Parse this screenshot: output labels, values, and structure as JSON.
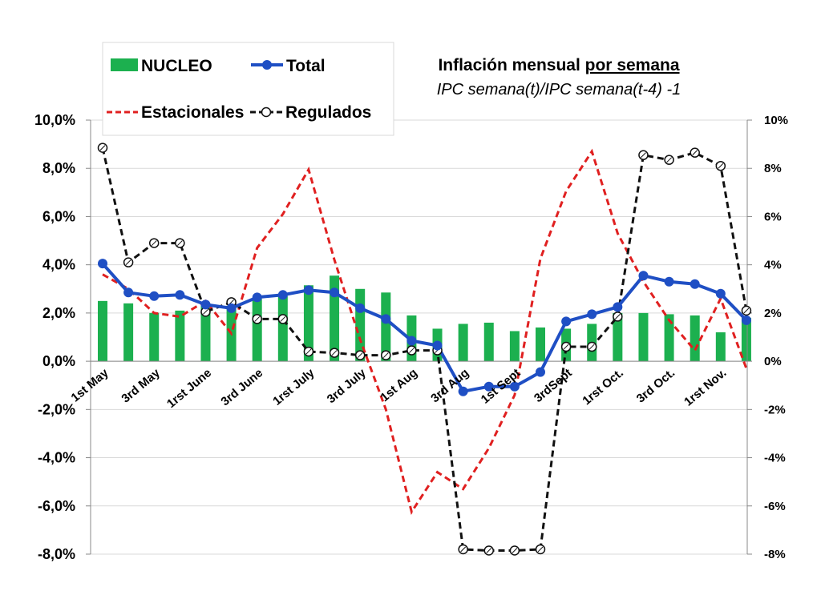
{
  "chart_data": {
    "type": "bar+line",
    "title": "Inflación mensual por semana",
    "title_prefix": "Inflación mensual ",
    "title_underlined": "por semana",
    "subtitle": "IPC semana(t)/IPC semana(t-4) -1",
    "grid": true,
    "legend_position": "top-left",
    "ylim_left": [
      -8,
      10
    ],
    "ylim_right": [
      -8,
      10
    ],
    "y_ticks_left": [
      "-8,0%",
      "-6,0%",
      "-4,0%",
      "-2,0%",
      "0,0%",
      "2,0%",
      "4,0%",
      "6,0%",
      "8,0%",
      "10,0%"
    ],
    "y_ticks_right": [
      "-8%",
      "-6%",
      "-4%",
      "-2%",
      "0%",
      "2%",
      "4%",
      "6%",
      "8%",
      "10%"
    ],
    "x_tick_labels": [
      "1st May",
      "3rd May",
      "1rst June",
      "3rd June",
      "1rst July",
      "3rd July",
      "1st Aug",
      "3rd Aug",
      "1st Sept",
      "3rdSept",
      "1rst Oct.",
      "3rd Oct.",
      "1rst Nov."
    ],
    "x_tick_every": 2,
    "n_points": 26,
    "series": [
      {
        "name": "NUCLEO",
        "type": "bar",
        "color": "#1cb04f",
        "values": [
          2.5,
          2.4,
          2.0,
          2.1,
          2.4,
          2.3,
          2.6,
          2.7,
          3.15,
          3.55,
          3.0,
          2.85,
          1.9,
          1.35,
          1.55,
          1.6,
          1.25,
          1.4,
          1.35,
          1.55,
          2.0,
          2.0,
          1.95,
          1.9,
          1.2,
          1.8
        ]
      },
      {
        "name": "Total",
        "type": "line-marker",
        "color": "#1f4fc4",
        "values": [
          4.05,
          2.85,
          2.7,
          2.75,
          2.35,
          2.2,
          2.65,
          2.75,
          2.95,
          2.85,
          2.2,
          1.75,
          0.85,
          0.65,
          -1.25,
          -1.05,
          -1.05,
          -0.45,
          1.65,
          1.95,
          2.25,
          3.55,
          3.3,
          3.2,
          2.8,
          1.7
        ]
      },
      {
        "name": "Estacionales",
        "type": "dashed-line",
        "color": "#e02020",
        "values": [
          3.6,
          3.0,
          2.0,
          1.85,
          2.5,
          1.15,
          4.7,
          6.1,
          7.95,
          4.2,
          0.9,
          -2.0,
          -6.25,
          -4.6,
          -5.3,
          -3.6,
          -1.4,
          4.25,
          7.05,
          8.7,
          5.3,
          3.3,
          1.7,
          0.45,
          2.6,
          -0.3
        ]
      },
      {
        "name": "Regulados",
        "type": "dashed-line-open-marker",
        "color": "#111111",
        "values": [
          8.85,
          4.1,
          4.9,
          4.9,
          2.05,
          2.45,
          1.75,
          1.75,
          0.4,
          0.35,
          0.25,
          0.25,
          0.45,
          0.45,
          -7.8,
          -7.85,
          -7.85,
          -7.8,
          0.6,
          0.6,
          1.85,
          8.55,
          8.35,
          8.65,
          8.1,
          2.1
        ]
      }
    ]
  }
}
